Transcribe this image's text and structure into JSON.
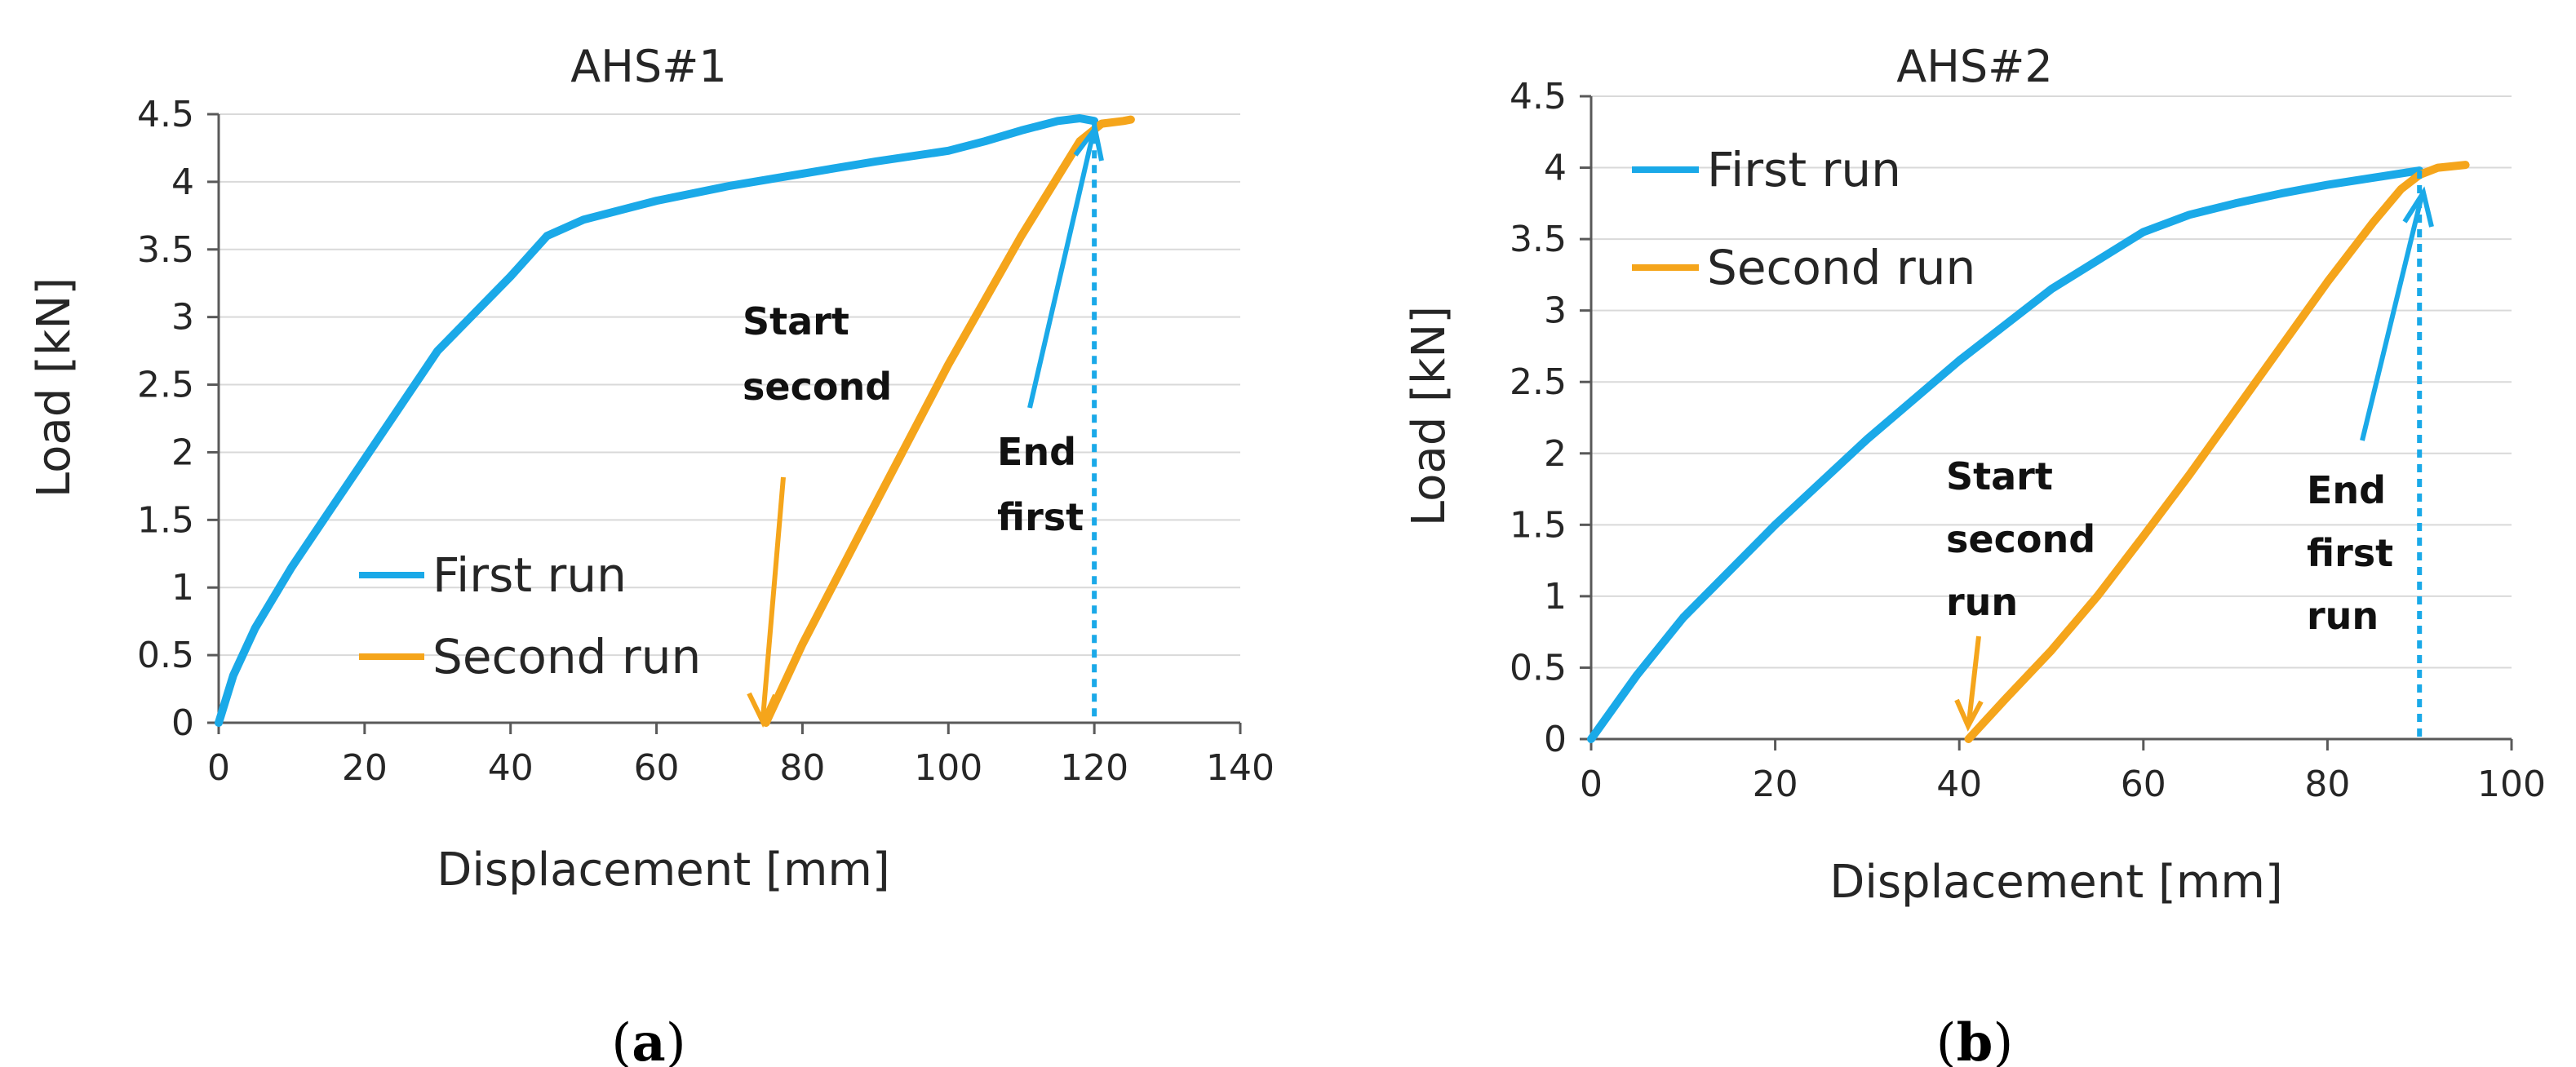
{
  "panels": [
    {
      "panel_label": "a",
      "annotations": [
        {
          "lines": [
            "Start",
            "second"
          ],
          "color": "#f5a51b"
        },
        {
          "lines": [
            "End",
            "first"
          ],
          "color": "#1aa9e8"
        }
      ],
      "marker_x": 120
    },
    {
      "panel_label": "b",
      "annotations": [
        {
          "lines": [
            "Start",
            "second",
            "run"
          ],
          "color": "#f5a51b"
        },
        {
          "lines": [
            "End",
            "first",
            "run"
          ],
          "color": "#1aa9e8"
        }
      ],
      "marker_x": 90
    }
  ],
  "chart_data": [
    {
      "type": "line",
      "title": "AHS#1",
      "xlabel": "Displacement [mm]",
      "ylabel": "Load [kN]",
      "xlim": [
        0,
        140
      ],
      "ylim": [
        0,
        4.5
      ],
      "xticks": [
        "0",
        "20",
        "40",
        "60",
        "80",
        "100",
        "120",
        "140"
      ],
      "yticks": [
        "0",
        "0.5",
        "1",
        "1.5",
        "2",
        "2.5",
        "3",
        "3.5",
        "4",
        "4.5"
      ],
      "grid": true,
      "legend_position": "bottom-left",
      "series": [
        {
          "name": "First run",
          "color": "#1aa9e8",
          "x": [
            0,
            2,
            5,
            10,
            15,
            20,
            30,
            40,
            45,
            50,
            60,
            70,
            80,
            90,
            100,
            105,
            110,
            115,
            118,
            120
          ],
          "y": [
            0,
            0.35,
            0.7,
            1.15,
            1.55,
            1.95,
            2.75,
            3.3,
            3.6,
            3.72,
            3.86,
            3.97,
            4.06,
            4.15,
            4.23,
            4.3,
            4.38,
            4.45,
            4.47,
            4.45
          ]
        },
        {
          "name": "Second run",
          "color": "#f5a51b",
          "x": [
            75,
            80,
            90,
            100,
            110,
            118,
            121,
            124,
            125
          ],
          "y": [
            0,
            0.58,
            1.62,
            2.65,
            3.6,
            4.3,
            4.43,
            4.45,
            4.46
          ]
        }
      ]
    },
    {
      "type": "line",
      "title": "AHS#2",
      "xlabel": "Displacement [mm]",
      "ylabel": "Load [kN]",
      "xlim": [
        0,
        100
      ],
      "ylim": [
        0,
        4.5
      ],
      "xticks": [
        "0",
        "20",
        "40",
        "60",
        "80",
        "100"
      ],
      "yticks": [
        "0",
        "0.5",
        "1",
        "1.5",
        "2",
        "2.5",
        "3",
        "3.5",
        "4",
        "4.5"
      ],
      "grid": true,
      "legend_position": "top-left",
      "series": [
        {
          "name": "First run",
          "color": "#1aa9e8",
          "x": [
            0,
            5,
            10,
            20,
            30,
            40,
            50,
            55,
            60,
            65,
            70,
            75,
            80,
            85,
            90
          ],
          "y": [
            0,
            0.45,
            0.85,
            1.5,
            2.1,
            2.65,
            3.15,
            3.35,
            3.55,
            3.67,
            3.75,
            3.82,
            3.88,
            3.93,
            3.98
          ]
        },
        {
          "name": "Second run",
          "color": "#f5a51b",
          "x": [
            41,
            45,
            50,
            55,
            60,
            65,
            70,
            75,
            80,
            85,
            88,
            90,
            92,
            95
          ],
          "y": [
            0,
            0.28,
            0.62,
            1.0,
            1.42,
            1.85,
            2.3,
            2.75,
            3.2,
            3.62,
            3.85,
            3.95,
            4.0,
            4.02
          ]
        }
      ]
    }
  ]
}
